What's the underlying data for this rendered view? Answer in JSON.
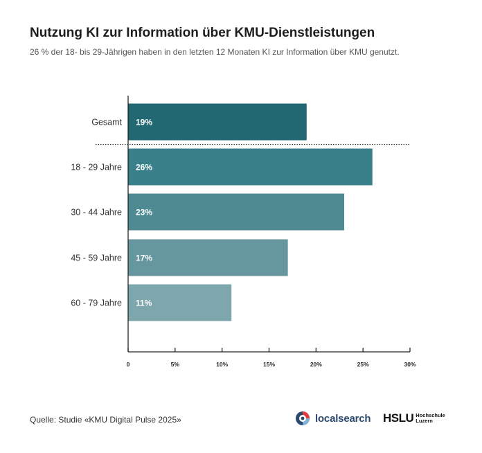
{
  "header": {
    "title": "Nutzung KI zur Information über KMU-Dienstleistungen",
    "subtitle": "26 % der 18- bis 29-Jährigen haben in den letzten 12 Monaten KI zur Information über KMU genutzt."
  },
  "chart_data": {
    "type": "bar",
    "orientation": "horizontal",
    "categories": [
      "Gesamt",
      "18 - 29 Jahre",
      "30 - 44 Jahre",
      "45 - 59 Jahre",
      "60 - 79 Jahre"
    ],
    "values": [
      19,
      26,
      23,
      17,
      11
    ],
    "data_labels": [
      "19%",
      "26%",
      "23%",
      "17%",
      "11%"
    ],
    "colors": [
      "#226873",
      "#39808a",
      "#4f8a93",
      "#66969e",
      "#7ea7ad"
    ],
    "xlim": [
      0,
      30
    ],
    "xticks": [
      0,
      5,
      10,
      15,
      20,
      25,
      30
    ],
    "xtick_labels": [
      "0",
      "5%",
      "10%",
      "15%",
      "20%",
      "25%",
      "30%"
    ],
    "separator_after": "Gesamt",
    "grid": false
  },
  "footer": {
    "source": "Quelle: Studie «KMU Digital Pulse 2025»",
    "logo_localsearch": "localsearch",
    "logo_hslu_main": "HSLU",
    "logo_hslu_sub1": "Hochschule",
    "logo_hslu_sub2": "Luzern"
  }
}
